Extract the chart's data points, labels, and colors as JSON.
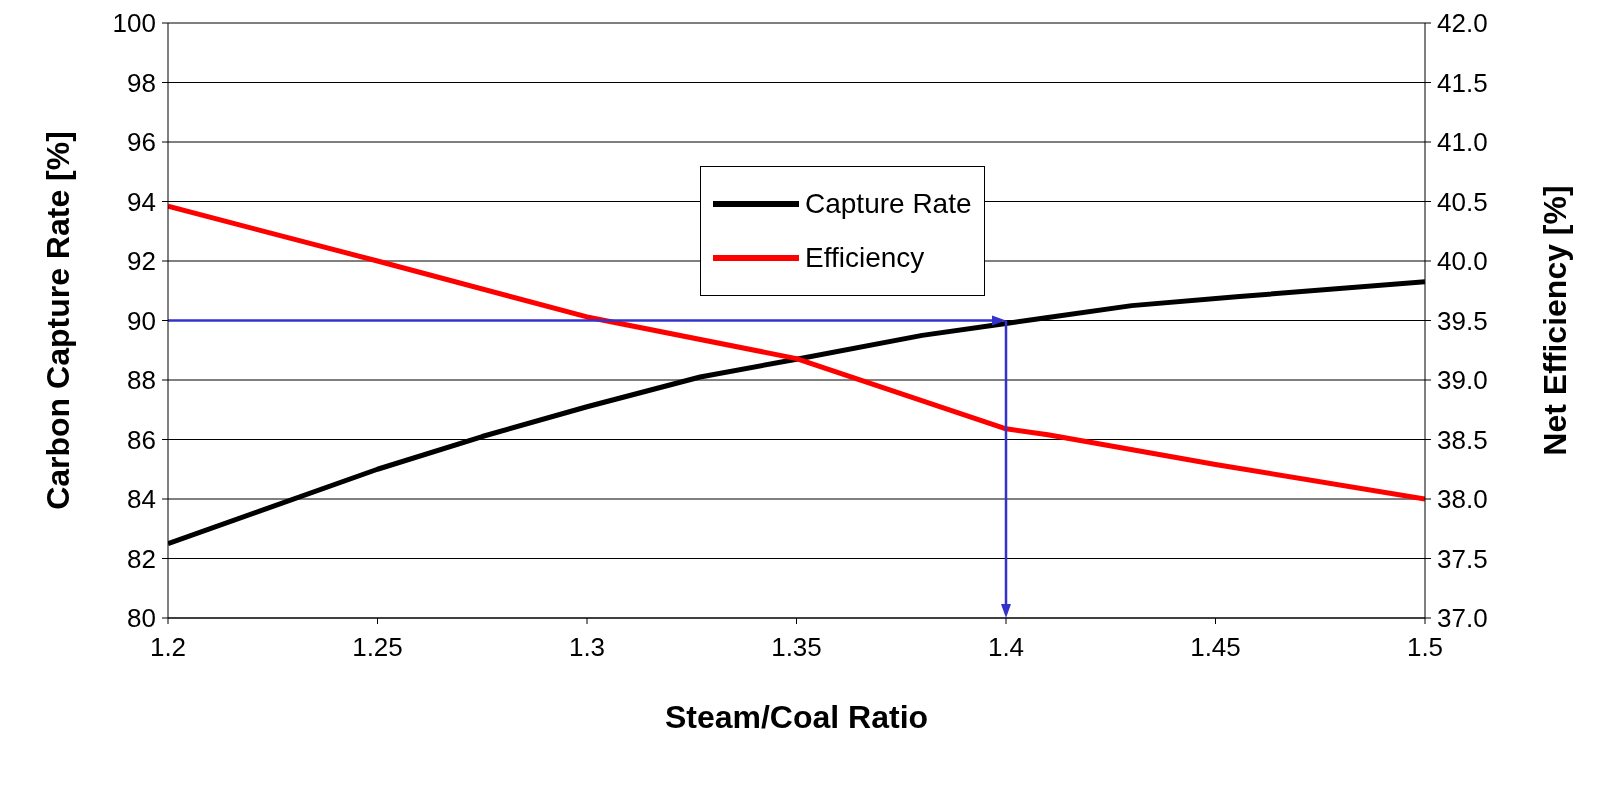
{
  "chart_data": {
    "type": "line",
    "xlabel": "Steam/Coal Ratio",
    "ylabel": "Carbon Capture Rate [%]",
    "y2label": "Net Efficiency [%]",
    "series": [
      {
        "name": "Capture Rate",
        "color": "#000000",
        "x": [
          1.2,
          1.25,
          1.275,
          1.3,
          1.327,
          1.35,
          1.38,
          1.4,
          1.41,
          1.43,
          1.455,
          1.5
        ],
        "values": [
          82.5,
          85.0,
          86.1,
          87.1,
          88.1,
          88.7,
          89.5,
          89.9,
          90.1,
          90.5,
          90.8,
          91.3
        ]
      },
      {
        "name": "Efficiency",
        "color": "#ff0000",
        "axis": "y2",
        "x": [
          1.2,
          1.25,
          1.3,
          1.35,
          1.4,
          1.41,
          1.45,
          1.5
        ],
        "values": [
          40.46,
          40.0,
          39.53,
          39.18,
          38.59,
          38.54,
          38.29,
          38.0
        ]
      }
    ],
    "xlim": [
      1.2,
      1.5
    ],
    "xticks": [
      {
        "value": 1.2,
        "label": "1.2"
      },
      1.25,
      {
        "value": 1.3,
        "label": "1.3"
      },
      1.35,
      {
        "value": 1.4,
        "label": "1.4"
      },
      1.45,
      {
        "value": 1.5,
        "label": "1.5"
      }
    ],
    "ylim": [
      80,
      100
    ],
    "yticks": [
      80,
      82,
      84,
      86,
      88,
      90,
      92,
      94,
      96,
      98,
      100
    ],
    "y2lim": [
      37,
      42
    ],
    "y2ticks": [
      {
        "value": 37,
        "label": "37.0"
      },
      37.5,
      {
        "value": 38,
        "label": "38.0"
      },
      38.5,
      {
        "value": 39,
        "label": "39.0"
      },
      39.5,
      {
        "value": 40,
        "label": "40.0"
      },
      40.5,
      {
        "value": 41,
        "label": "41.0"
      },
      41.5,
      {
        "value": 42,
        "label": "42.0"
      }
    ],
    "ref_lines": [
      {
        "axis": "y",
        "value": 90,
        "color": "#3333cc"
      },
      {
        "axis": "x",
        "value": 1.4,
        "color": "#3333cc"
      }
    ],
    "grid": "y",
    "legend": "top",
    "marker": "none",
    "line_style": "solid"
  }
}
